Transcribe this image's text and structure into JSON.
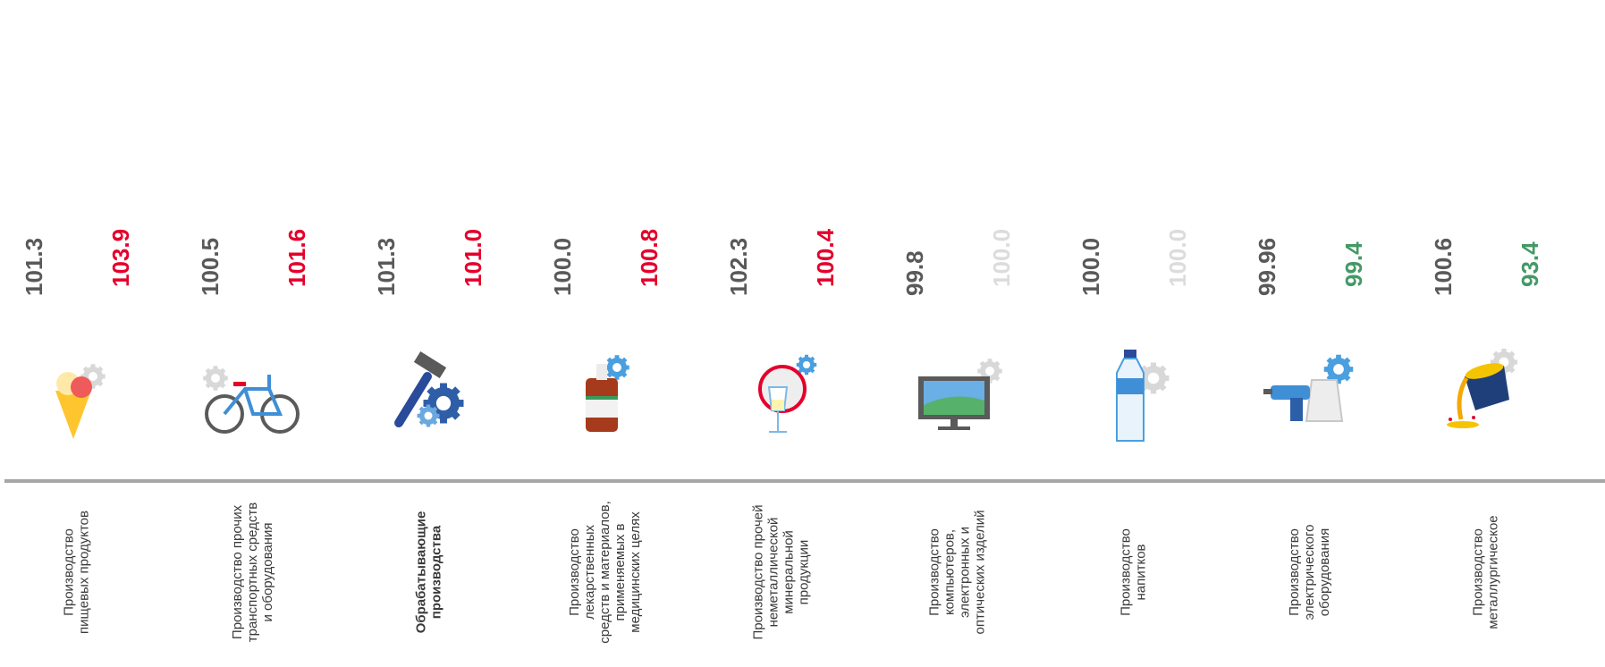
{
  "chart_data": {
    "type": "bar",
    "colors": {
      "base": "#595959",
      "increase": "#e4002b",
      "neutral": "#dcdcdc",
      "decrease": "#449966",
      "axis": "#a6a6a6"
    },
    "categories": [
      {
        "label": "Производство пищевых продуктов",
        "lines": [
          "Производство",
          "пищевых продуктов"
        ],
        "bold": false,
        "icon": "ice-cream-icon",
        "base": "101.3",
        "current": "103.9",
        "trend": "increase"
      },
      {
        "label": "Производство прочих транспортных средств и оборудования",
        "lines": [
          "Производство  прочих",
          "транспортных средств",
          "и оборудования"
        ],
        "bold": false,
        "icon": "bicycle-icon",
        "base": "100.5",
        "current": "101.6",
        "trend": "increase"
      },
      {
        "label": "Обрабатывающие производства",
        "lines": [
          "Обрабатывающие",
          "производства"
        ],
        "bold": true,
        "icon": "hammer-gears-icon",
        "base": "101.3",
        "current": "101.0",
        "trend": "increase"
      },
      {
        "label": "Производство лекарственных средств и материалов, применяемых в медицинских целях",
        "lines": [
          "Производство",
          "лекарственных",
          "средств и материалов,",
          "применяемых в",
          "медицинских целях"
        ],
        "bold": false,
        "icon": "medicine-bottle-icon",
        "base": "100.0",
        "current": "100.8",
        "trend": "increase"
      },
      {
        "label": "Производство прочей неметаллической минеральной продукции",
        "lines": [
          "Производство прочей",
          "неметаллической",
          "минеральной",
          "продукции"
        ],
        "bold": false,
        "icon": "glass-mirror-icon",
        "base": "102.3",
        "current": "100.4",
        "trend": "increase"
      },
      {
        "label": "Производство компьютеров, электронных и оптических изделий",
        "lines": [
          "Производство",
          "компьютеров,",
          "электронных и",
          "оптических изделий"
        ],
        "bold": false,
        "icon": "monitor-icon",
        "base": "99.8",
        "current": "100.0",
        "trend": "neutral"
      },
      {
        "label": "Производство напитков",
        "lines": [
          "Производство",
          "напитков"
        ],
        "bold": false,
        "icon": "water-bottle-icon",
        "base": "100.0",
        "current": "100.0",
        "trend": "neutral"
      },
      {
        "label": "Производство электрического оборудования",
        "lines": [
          "Производство",
          "электрического",
          "оборудования"
        ],
        "bold": false,
        "icon": "drill-kettle-icon",
        "base": "99.96",
        "current": "99.4",
        "trend": "decrease"
      },
      {
        "label": "Производство металлургическое",
        "lines": [
          "Производство",
          "металлургическое"
        ],
        "bold": false,
        "icon": "ladle-icon",
        "base": "100.6",
        "current": "93.4",
        "trend": "decrease"
      }
    ]
  }
}
